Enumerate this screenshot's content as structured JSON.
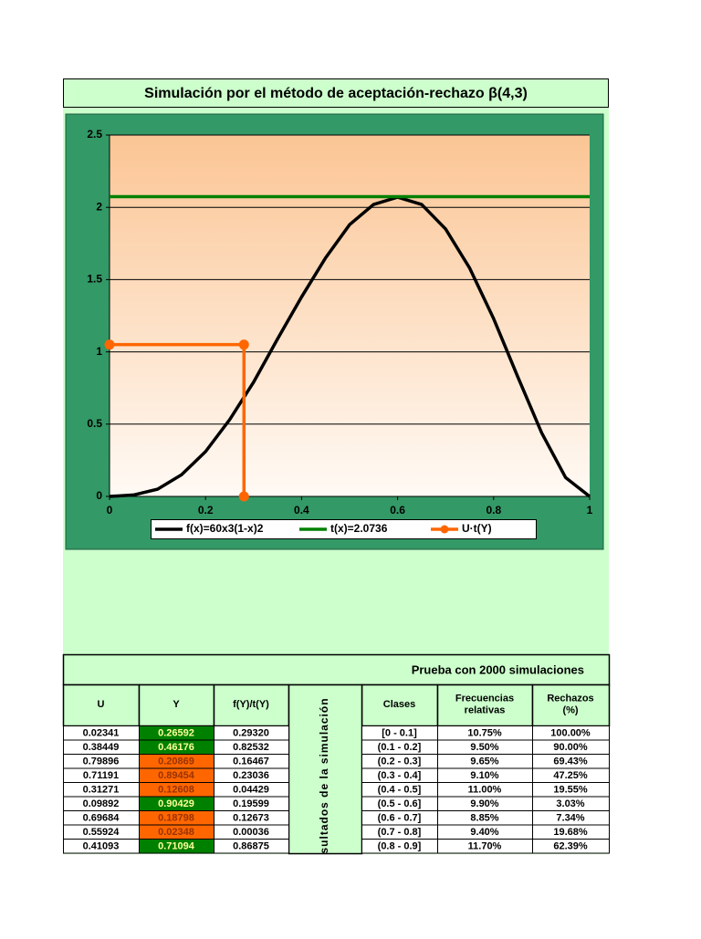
{
  "chart_data": {
    "type": "line",
    "title": "Simulación por el método de aceptación-rechazo β(4,3)",
    "xlim": [
      0,
      1
    ],
    "xticks": [
      0,
      0.2,
      0.4,
      0.6,
      0.8,
      1
    ],
    "ylim": [
      0,
      2.5
    ],
    "yticks": [
      0,
      0.5,
      1,
      1.5,
      2,
      2.5
    ],
    "grid": true,
    "series": [
      {
        "name": "f(x)=60x3(1-x)2",
        "color": "#000000",
        "x": [
          0,
          0.05,
          0.1,
          0.15,
          0.2,
          0.25,
          0.3,
          0.35,
          0.4,
          0.45,
          0.5,
          0.55,
          0.6,
          0.65,
          0.7,
          0.75,
          0.8,
          0.85,
          0.9,
          0.95,
          1
        ],
        "values": [
          0,
          0.01,
          0.05,
          0.15,
          0.31,
          0.53,
          0.79,
          1.09,
          1.38,
          1.65,
          1.88,
          2.02,
          2.07,
          2.02,
          1.85,
          1.58,
          1.23,
          0.83,
          0.44,
          0.13,
          0
        ]
      },
      {
        "name": "t(x)=2.0736",
        "color": "#008000",
        "x": [
          0,
          1
        ],
        "values": [
          2.0736,
          2.0736
        ]
      },
      {
        "name": "U·t(Y)",
        "color": "#ff6600",
        "markers": true,
        "x": [
          0,
          0.28,
          0.28
        ],
        "values": [
          1.05,
          1.05,
          0
        ]
      }
    ]
  },
  "table": {
    "caption": "Prueba con 2000 simulaciones",
    "side_label": "sultados de la simulación",
    "left_headers": [
      "U",
      "Y",
      "f(Y)/t(Y)"
    ],
    "right_headers": [
      "Clases",
      "Frecuencias relativas",
      "Rechazos (%)"
    ],
    "y_fill": [
      "#008000",
      "#008000",
      "#ff6600",
      "#ff6600",
      "#ff6600",
      "#008000",
      "#ff6600",
      "#ff6600",
      "#008000"
    ],
    "y_text": [
      "#ffff99",
      "#ffff99",
      "#993300",
      "#993300",
      "#993300",
      "#ffff99",
      "#993300",
      "#993300",
      "#ffff99"
    ],
    "rows": [
      [
        "0.02341",
        "0.26592",
        "0.29320",
        "[0 - 0.1]",
        "10.75%",
        "100.00%"
      ],
      [
        "0.38449",
        "0.46176",
        "0.82532",
        "(0.1 - 0.2]",
        "9.50%",
        "90.00%"
      ],
      [
        "0.79896",
        "0.20869",
        "0.16467",
        "(0.2 - 0.3]",
        "9.65%",
        "69.43%"
      ],
      [
        "0.71191",
        "0.89454",
        "0.23036",
        "(0.3 - 0.4]",
        "9.10%",
        "47.25%"
      ],
      [
        "0.31271",
        "0.12608",
        "0.04429",
        "(0.4 - 0.5]",
        "11.00%",
        "19.55%"
      ],
      [
        "0.09892",
        "0.90429",
        "0.19599",
        "(0.5 - 0.6]",
        "9.90%",
        "3.03%"
      ],
      [
        "0.69684",
        "0.18798",
        "0.12673",
        "(0.6 - 0.7]",
        "8.85%",
        "7.34%"
      ],
      [
        "0.55924",
        "0.02348",
        "0.00036",
        "(0.7 - 0.8]",
        "9.40%",
        "19.68%"
      ],
      [
        "0.41093",
        "0.71094",
        "0.86875",
        "(0.8 - 0.9]",
        "11.70%",
        "62.39%"
      ]
    ]
  }
}
